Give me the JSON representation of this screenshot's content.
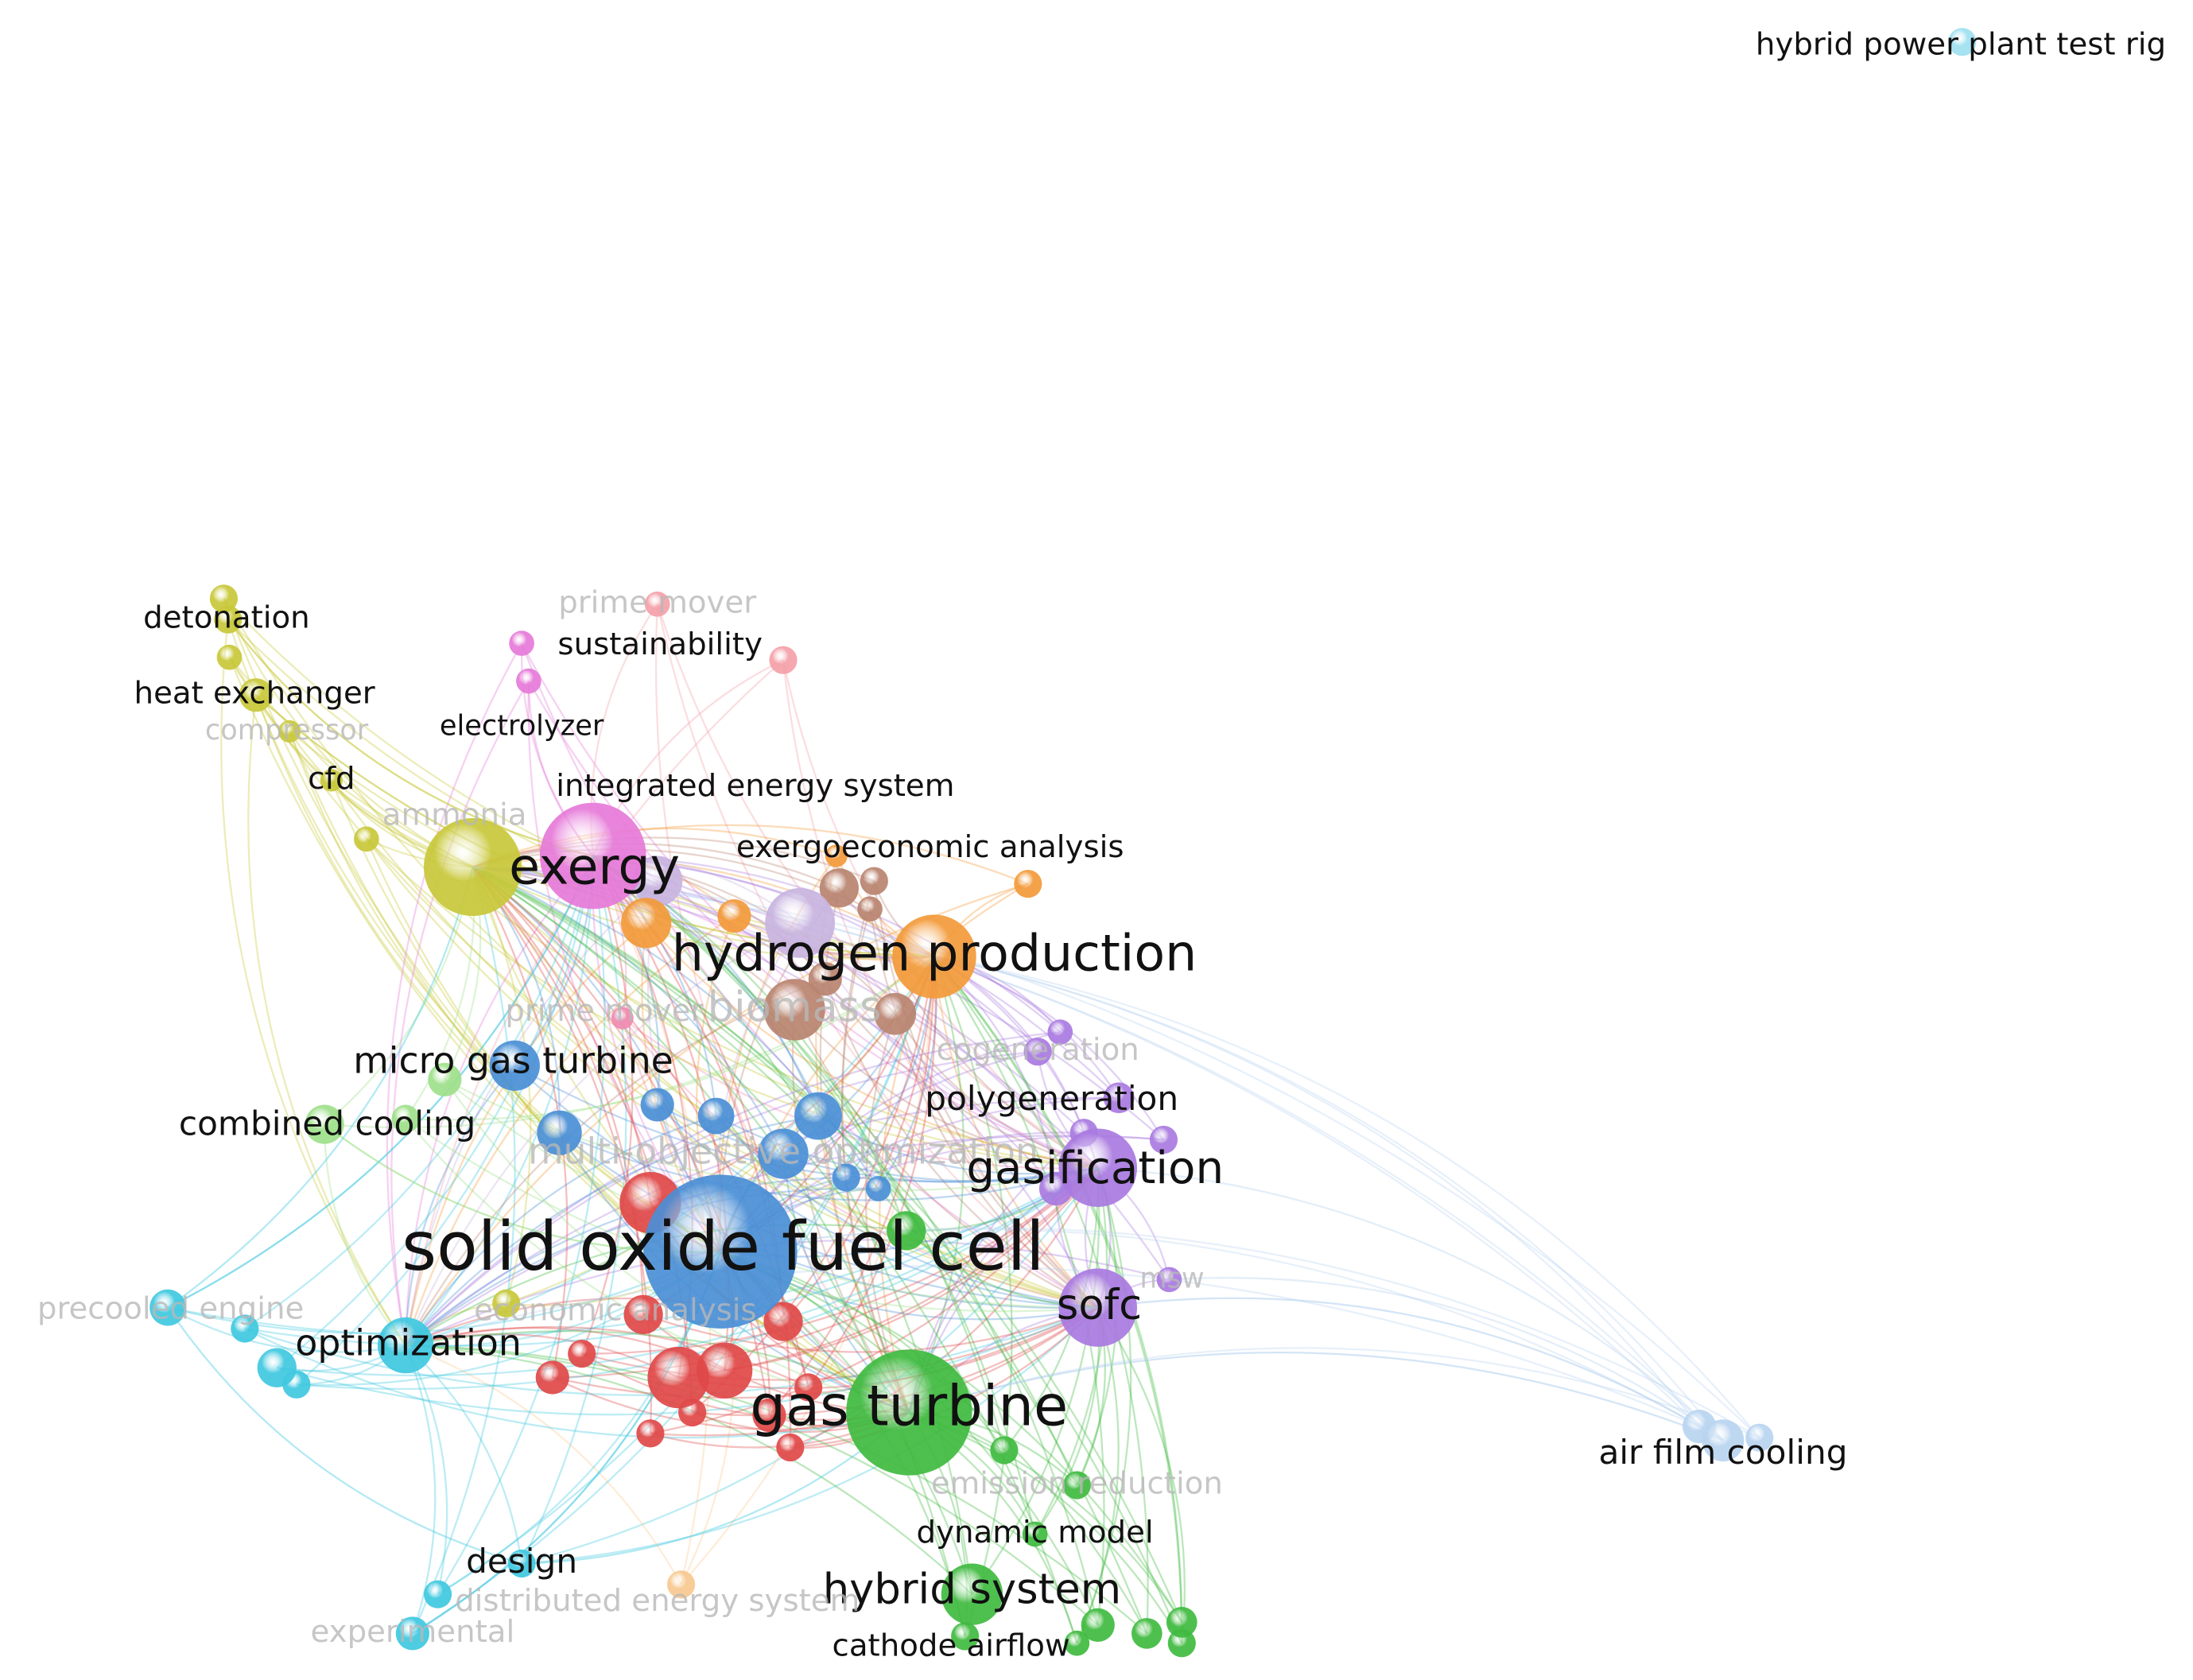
{
  "nodes": [
    {
      "label": "hybrid power plant test rig"
    },
    {
      "label": "detonation"
    },
    {
      "label": "heat exchanger"
    },
    {
      "label": "compressor"
    },
    {
      "label": "cfd"
    },
    {
      "label": "ammonia"
    },
    {
      "label": "prime mover"
    },
    {
      "label": "sustainability"
    },
    {
      "label": "electrolyzer"
    },
    {
      "label": "integrated energy system"
    },
    {
      "label": "exergy"
    },
    {
      "label": "exergoeconomic analysis"
    },
    {
      "label": "hydrogen production"
    },
    {
      "label": "biomass"
    },
    {
      "label": "prime mover"
    },
    {
      "label": "micro gas turbine"
    },
    {
      "label": "cogeneration"
    },
    {
      "label": "polygeneration"
    },
    {
      "label": "combined cooling"
    },
    {
      "label": "multi-objective optimization"
    },
    {
      "label": "gasification"
    },
    {
      "label": "solid oxide fuel cell"
    },
    {
      "label": "sofc"
    },
    {
      "label": "msw"
    },
    {
      "label": "precooled engine"
    },
    {
      "label": "optimization"
    },
    {
      "label": "economic analysis"
    },
    {
      "label": "gas turbine"
    },
    {
      "label": "air film cooling"
    },
    {
      "label": "emission reduction"
    },
    {
      "label": "dynamic model"
    },
    {
      "label": "design"
    },
    {
      "label": "hybrid system"
    },
    {
      "label": "distributed energy system"
    },
    {
      "label": "experimental"
    },
    {
      "label": "cathode airflow"
    }
  ]
}
